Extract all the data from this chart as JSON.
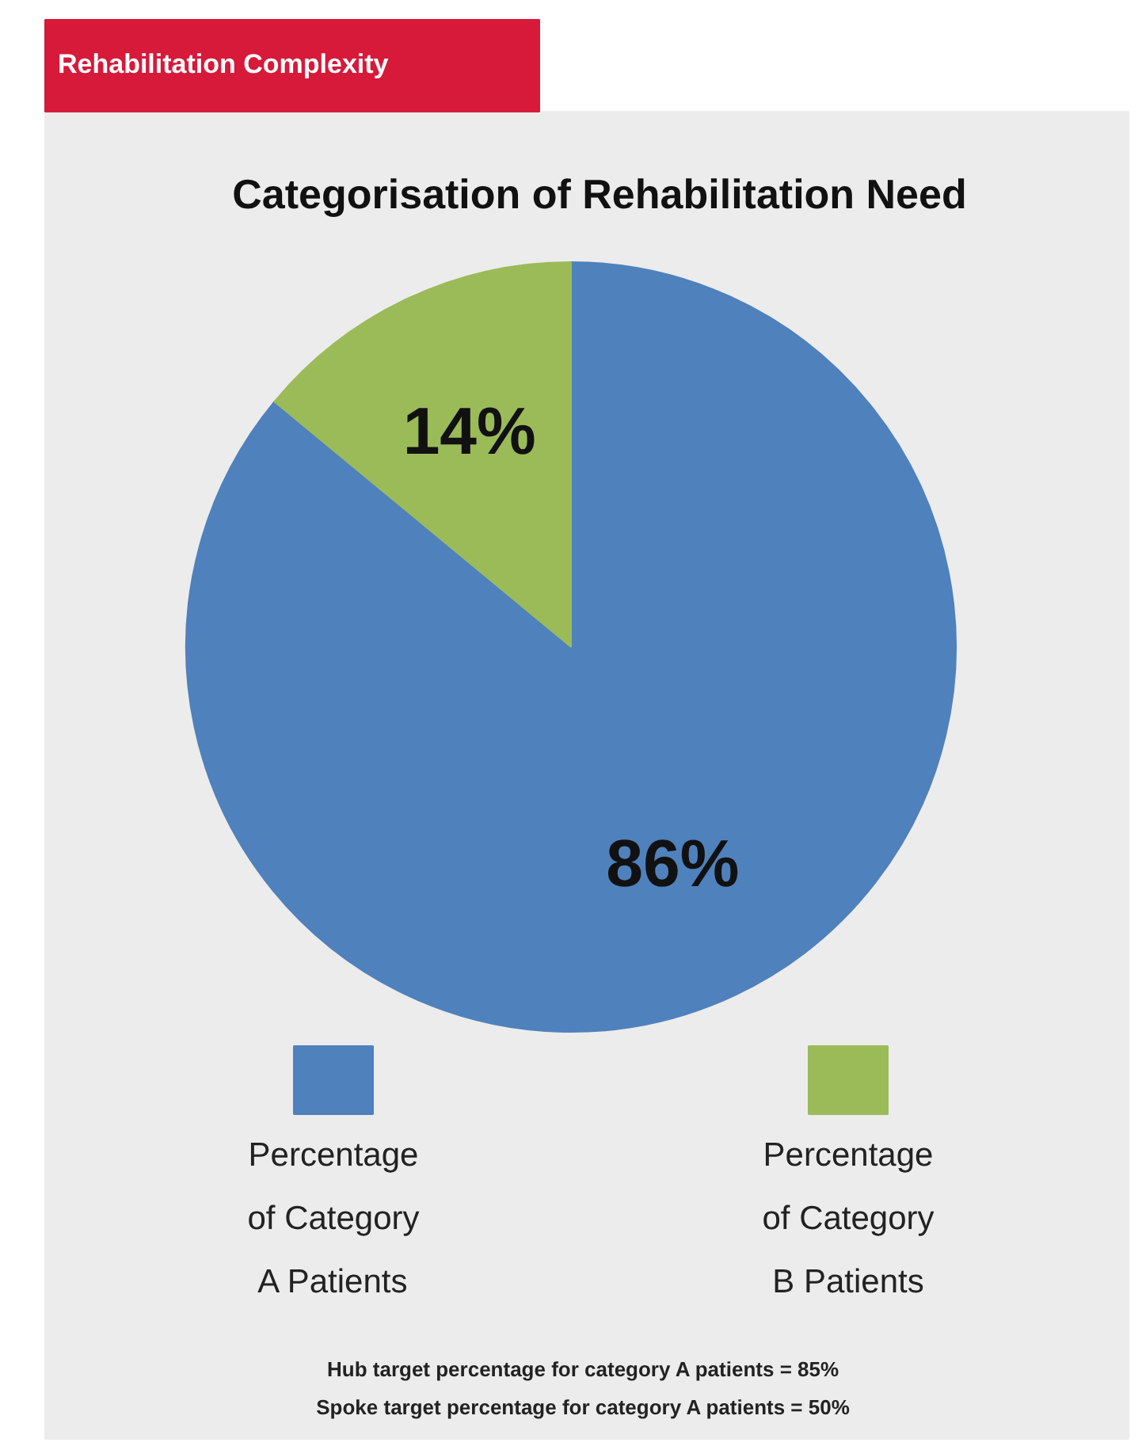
{
  "chart_data": {
    "type": "pie",
    "subtitle": "Rehabilitation Complexity",
    "title": "Categorisation of Rehabilitation Need",
    "categories": [
      "Percentage of Category A Patients",
      "Percentage of Category B Patients"
    ],
    "values": [
      86,
      14
    ],
    "colors": [
      "#4f81bd",
      "#9bbb59"
    ],
    "value_labels": [
      "86%",
      "14%"
    ],
    "legend": "bottom",
    "annotations": [
      "Hub target percentage for category A patients = 85%",
      "Spoke target percentage for category A patients = 50%"
    ]
  }
}
